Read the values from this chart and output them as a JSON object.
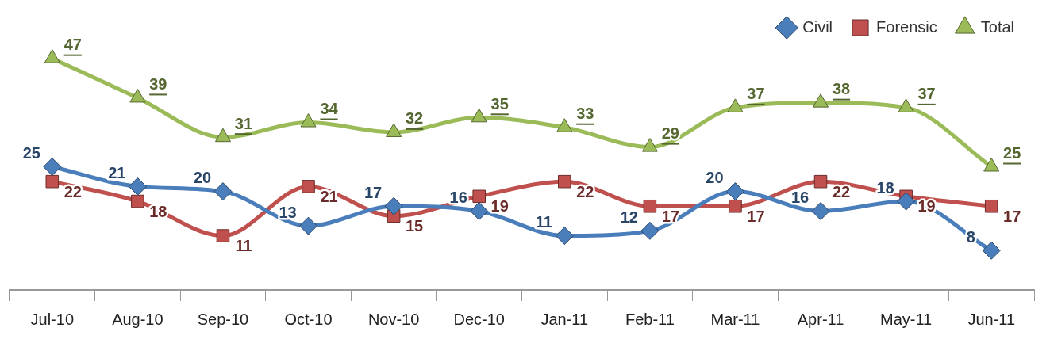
{
  "chart_data": {
    "type": "line",
    "categories": [
      "Jul-10",
      "Aug-10",
      "Sep-10",
      "Oct-10",
      "Nov-10",
      "Dec-10",
      "Jan-11",
      "Feb-11",
      "Mar-11",
      "Apr-11",
      "May-11",
      "Jun-11"
    ],
    "series": [
      {
        "name": "Civil",
        "color": "#4a7ebb",
        "marker": "diamond",
        "values": [
          25,
          21,
          20,
          13,
          17,
          16,
          11,
          12,
          20,
          16,
          18,
          8
        ]
      },
      {
        "name": "Forensic",
        "color": "#c0504d",
        "marker": "square",
        "values": [
          22,
          18,
          11,
          21,
          15,
          19,
          22,
          17,
          17,
          22,
          19,
          17
        ]
      },
      {
        "name": "Total",
        "color": "#9bbb59",
        "marker": "triangle",
        "values": [
          47,
          39,
          31,
          34,
          32,
          35,
          33,
          29,
          37,
          38,
          37,
          25
        ]
      }
    ],
    "tick_labels": "x",
    "data_labels": true,
    "legend": "top right",
    "grid": false
  }
}
